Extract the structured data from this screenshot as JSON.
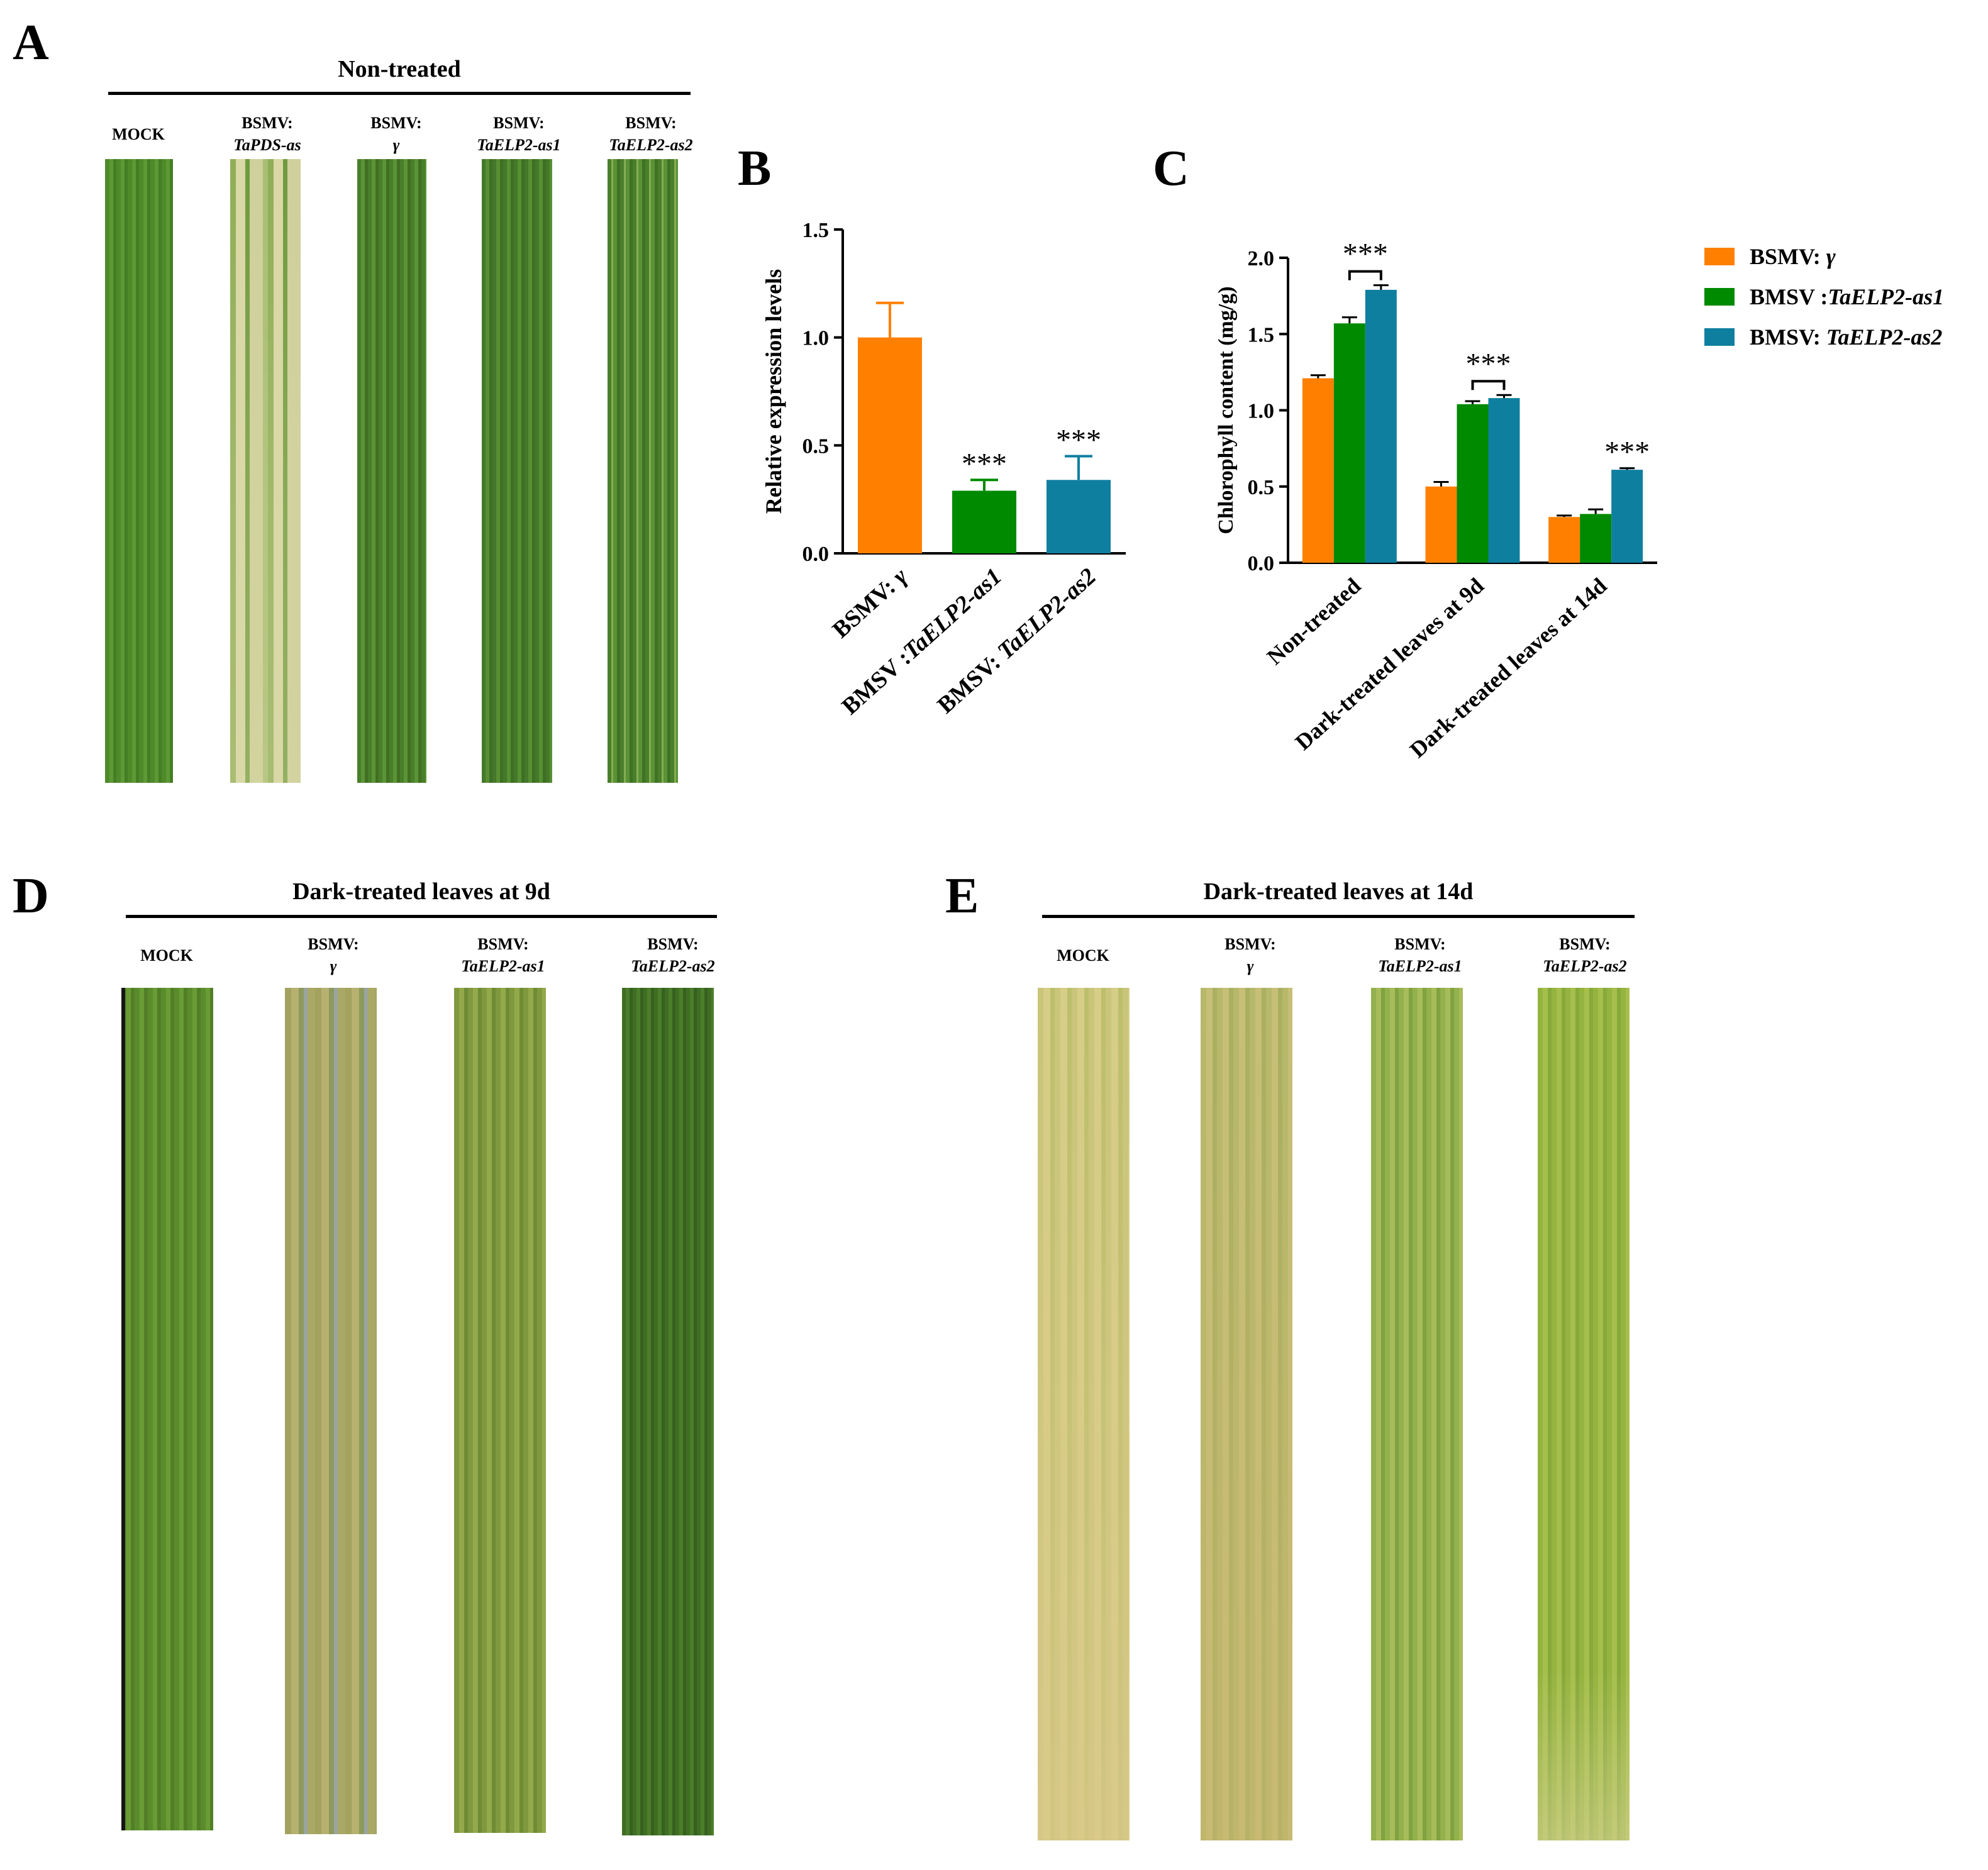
{
  "panels": {
    "A": {
      "letter": "A",
      "title": "Non-treated",
      "labels": [
        {
          "l1": "MOCK",
          "l2": ""
        },
        {
          "l1": "BSMV:",
          "l2": "TaPDS-as"
        },
        {
          "l1": "BSMV:",
          "l2": "γ"
        },
        {
          "l1": "BSMV:",
          "l2": "TaELP2-as1"
        },
        {
          "l1": "BSMV:",
          "l2": "TaELP2-as2"
        }
      ]
    },
    "B": {
      "letter": "B"
    },
    "C": {
      "letter": "C"
    },
    "D": {
      "letter": "D",
      "title": "Dark-treated leaves at 9d",
      "labels": [
        {
          "l1": "MOCK",
          "l2": ""
        },
        {
          "l1": "BSMV:",
          "l2": "γ"
        },
        {
          "l1": "BSMV:",
          "l2": "TaELP2-as1"
        },
        {
          "l1": "BSMV:",
          "l2": "TaELP2-as2"
        }
      ]
    },
    "E": {
      "letter": "E",
      "title": "Dark-treated leaves at 14d",
      "labels": [
        {
          "l1": "MOCK",
          "l2": ""
        },
        {
          "l1": "BSMV:",
          "l2": "γ"
        },
        {
          "l1": "BSMV:",
          "l2": "TaELP2-as1"
        },
        {
          "l1": "BSMV:",
          "l2": "TaELP2-as2"
        }
      ]
    }
  },
  "colors": {
    "orange": "#ff8000",
    "green": "#008a00",
    "teal": "#0f7fa0"
  },
  "chart_data": [
    {
      "id": "B",
      "type": "bar",
      "ylabel": "Relative expression levels",
      "ylim": [
        0,
        1.5
      ],
      "yticks": [
        "0.0",
        "0.5",
        "1.0",
        "1.5"
      ],
      "categories": [
        {
          "pre": "BSMV: ",
          "it": "γ"
        },
        {
          "pre": "BMSV :",
          "it": "TaELP2-as1"
        },
        {
          "pre": "BMSV: ",
          "it": "TaELP2-as2"
        }
      ],
      "values": [
        1.0,
        0.29,
        0.34
      ],
      "errors": [
        0.16,
        0.05,
        0.11
      ],
      "significance": [
        "",
        "***",
        "***"
      ]
    },
    {
      "id": "C",
      "type": "bar",
      "ylabel": "Chlorophyll content (mg/g)",
      "ylim": [
        0,
        2.0
      ],
      "yticks": [
        "0.0",
        "0.5",
        "1.0",
        "1.5",
        "2.0"
      ],
      "categories": [
        "Non-treated",
        "Dark-treated leaves at 9d",
        "Dark-treated leaves at 14d"
      ],
      "series": [
        {
          "pre": "BSMV: ",
          "it": "γ",
          "values": [
            1.21,
            0.5,
            0.3
          ],
          "errors": [
            0.02,
            0.03,
            0.01
          ]
        },
        {
          "pre": "BMSV :",
          "it": "TaELP2-as1",
          "values": [
            1.57,
            1.04,
            0.32
          ],
          "errors": [
            0.04,
            0.02,
            0.03
          ]
        },
        {
          "pre": "BMSV: ",
          "it": "TaELP2-as2",
          "values": [
            1.79,
            1.08,
            0.61
          ],
          "errors": [
            0.03,
            0.02,
            0.01
          ]
        }
      ],
      "significance": [
        "***",
        "***",
        "***"
      ],
      "legend_position": "right"
    }
  ]
}
